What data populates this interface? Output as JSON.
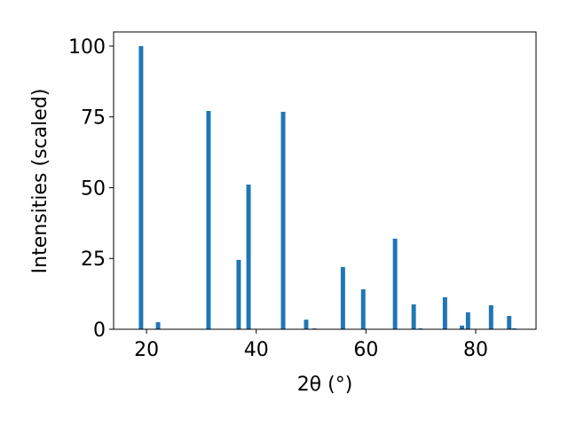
{
  "chart_data": {
    "type": "bar",
    "x_label": "2θ (°)",
    "y_label": "Intensities (scaled)",
    "x": [
      19.0,
      22.1,
      31.3,
      36.8,
      38.6,
      44.9,
      49.1,
      50.6,
      55.8,
      59.5,
      65.3,
      68.7,
      69.9,
      74.4,
      77.5,
      78.6,
      82.8,
      86.1,
      87.0
    ],
    "values": [
      100,
      2.5,
      77.1,
      24.5,
      51.1,
      76.8,
      3.4,
      0.3,
      22,
      14.1,
      32,
      8.8,
      0.3,
      11.3,
      1.3,
      6,
      8.5,
      4.7,
      0.3
    ],
    "color": "#1f77b4",
    "xlim": [
      14.0,
      91.0
    ],
    "xticks": [
      20,
      40,
      60,
      80
    ],
    "ylim": [
      0,
      105
    ],
    "yticks": [
      0,
      25,
      50,
      75,
      100
    ]
  }
}
